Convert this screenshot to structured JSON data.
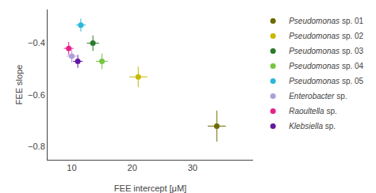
{
  "chart_data": {
    "type": "scatter",
    "xlabel": "FEE intercept [μM]",
    "ylabel": "FEE slope",
    "xlim": [
      6,
      40
    ],
    "ylim": [
      -0.85,
      -0.27
    ],
    "xticks": [
      10,
      20,
      30
    ],
    "yticks": [
      -0.8,
      -0.6,
      -0.4
    ],
    "grid": false,
    "legend": "right",
    "marker": "circle",
    "series": [
      {
        "name": "Pseudomonas sp. 01",
        "color": "#6b6b00",
        "x": [
          34.0
        ],
        "values": [
          -0.72
        ],
        "xerr": [
          1.5
        ],
        "yerr": [
          0.06
        ]
      },
      {
        "name": "Pseudomonas sp. 02",
        "color": "#c8b800",
        "x": [
          21.0
        ],
        "values": [
          -0.53
        ],
        "xerr": [
          1.5
        ],
        "yerr": [
          0.04
        ]
      },
      {
        "name": "Pseudomonas sp. 03",
        "color": "#2a7a2a",
        "x": [
          13.5
        ],
        "values": [
          -0.4
        ],
        "xerr": [
          1.0
        ],
        "yerr": [
          0.03
        ]
      },
      {
        "name": "Pseudomonas sp. 04",
        "color": "#76c442",
        "x": [
          15.0
        ],
        "values": [
          -0.47
        ],
        "xerr": [
          1.0
        ],
        "yerr": [
          0.03
        ]
      },
      {
        "name": "Pseudomonas sp. 05",
        "color": "#2ab8d8",
        "x": [
          11.5
        ],
        "values": [
          -0.33
        ],
        "xerr": [
          0.8
        ],
        "yerr": [
          0.025
        ]
      },
      {
        "name": "Enterobacter sp.",
        "color": "#b09ddb",
        "x": [
          10.0
        ],
        "values": [
          -0.45
        ],
        "xerr": [
          0.8
        ],
        "yerr": [
          0.025
        ]
      },
      {
        "name": "Raoultella sp.",
        "color": "#e8208c",
        "x": [
          9.5
        ],
        "values": [
          -0.42
        ],
        "xerr": [
          0.8
        ],
        "yerr": [
          0.025
        ]
      },
      {
        "name": "Klebsiella sp.",
        "color": "#6318a0",
        "x": [
          11.0
        ],
        "values": [
          -0.47
        ],
        "xerr": [
          0.8
        ],
        "yerr": [
          0.025
        ]
      }
    ]
  }
}
